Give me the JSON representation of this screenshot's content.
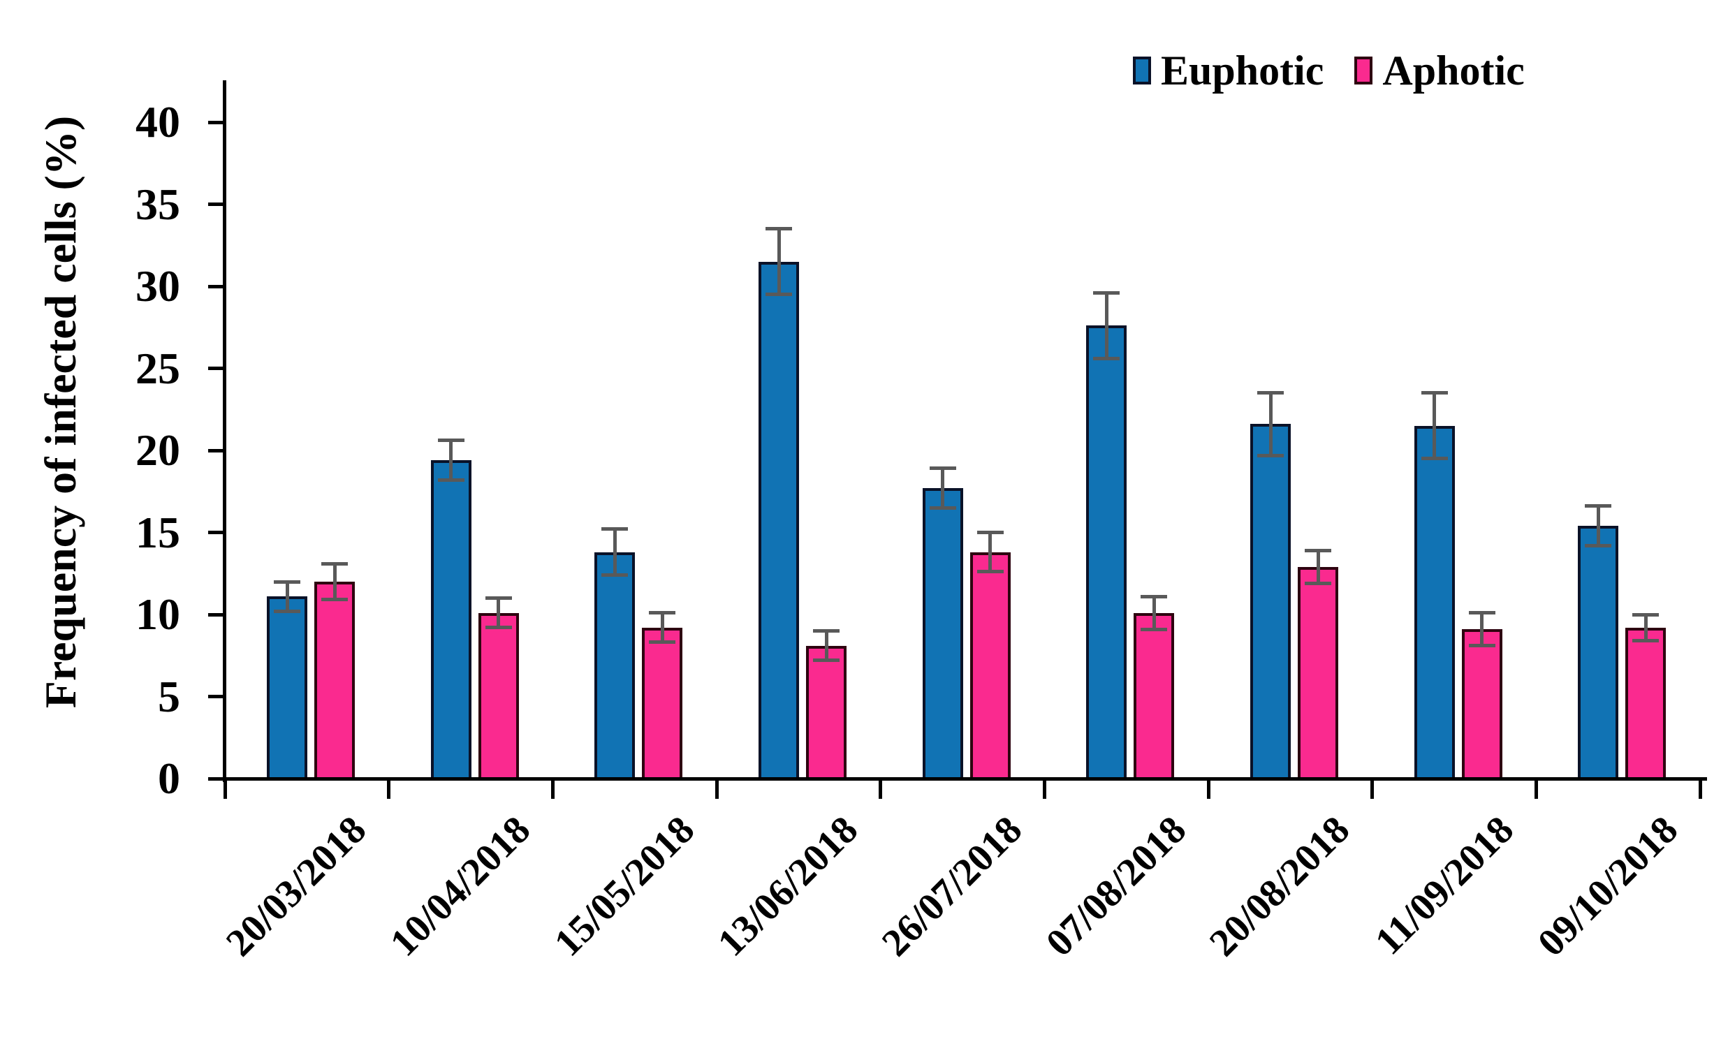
{
  "chart_data": {
    "type": "bar",
    "title": "",
    "xlabel": "",
    "ylabel": "Frequency of infected cells (%)",
    "ylim": [
      0,
      40
    ],
    "y_ticks": [
      0,
      5,
      10,
      15,
      20,
      25,
      30,
      35,
      40
    ],
    "grid": false,
    "legend_position": "top-right",
    "error_bar_color": "#595959",
    "categories": [
      "20/03/2018",
      "10/04/2018",
      "15/05/2018",
      "13/06/2018",
      "26/07/2018",
      "07/08/2018",
      "20/08/2018",
      "11/09/2018",
      "09/10/2018"
    ],
    "series": [
      {
        "name": "Euphotic",
        "color": "#1173b4",
        "border_color": "#0a1228",
        "values": [
          11.1,
          19.4,
          13.8,
          31.5,
          17.7,
          27.6,
          21.6,
          21.5,
          15.4
        ],
        "errors": [
          0.9,
          1.2,
          1.4,
          2.0,
          1.2,
          2.0,
          1.9,
          2.0,
          1.2
        ]
      },
      {
        "name": "Aphotic",
        "color": "#fa2a8f",
        "border_color": "#2e0410",
        "values": [
          12.0,
          10.1,
          9.2,
          8.1,
          13.8,
          10.1,
          12.9,
          9.1,
          9.2
        ],
        "errors": [
          1.1,
          0.9,
          0.9,
          0.9,
          1.2,
          1.0,
          1.0,
          1.0,
          0.8
        ]
      }
    ]
  }
}
